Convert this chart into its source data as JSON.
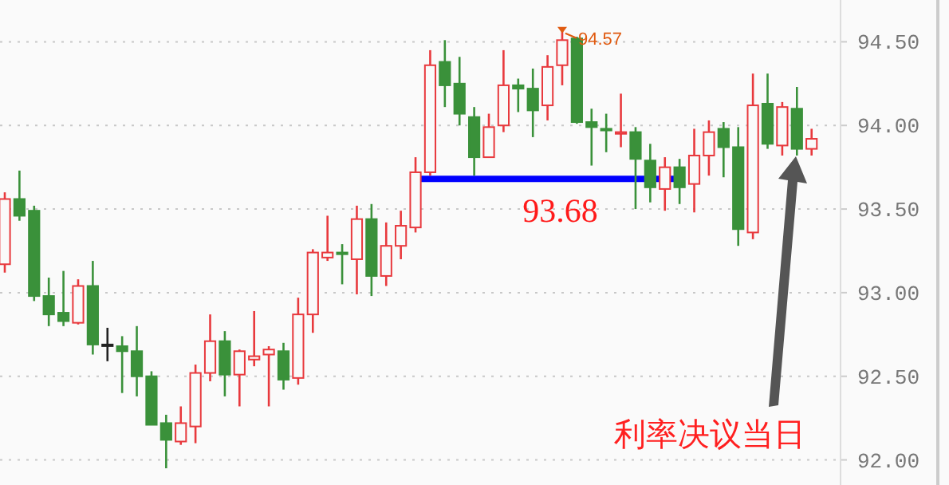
{
  "chart_data": {
    "type": "candlestick",
    "categories": [
      null,
      null,
      null,
      null,
      null,
      null,
      null,
      null,
      null,
      null,
      null,
      null,
      null,
      null,
      null,
      null,
      null,
      null,
      null,
      null,
      null,
      null,
      null,
      null,
      null,
      null,
      null,
      null,
      null,
      null,
      null,
      null,
      null,
      null,
      null,
      null,
      null,
      null,
      null,
      null,
      null,
      null,
      null,
      null,
      null,
      null,
      null,
      null,
      null,
      null,
      null,
      null,
      null,
      null,
      null,
      null
    ],
    "ohlc": [
      [
        93.17,
        93.6,
        93.12,
        93.56
      ],
      [
        93.56,
        93.73,
        93.43,
        93.46
      ],
      [
        93.49,
        93.52,
        92.95,
        92.98
      ],
      [
        92.98,
        93.09,
        92.8,
        92.87
      ],
      [
        92.88,
        93.13,
        92.8,
        92.83
      ],
      [
        92.82,
        93.08,
        92.81,
        93.04
      ],
      [
        93.04,
        93.19,
        92.63,
        92.69
      ],
      [
        92.69,
        92.79,
        92.59,
        92.69
      ],
      [
        92.68,
        92.74,
        92.4,
        92.65
      ],
      [
        92.65,
        92.8,
        92.38,
        92.5
      ],
      [
        92.5,
        92.53,
        92.21,
        92.21
      ],
      [
        92.22,
        92.27,
        91.95,
        92.12
      ],
      [
        92.11,
        92.32,
        92.09,
        92.22
      ],
      [
        92.2,
        92.57,
        92.1,
        92.52
      ],
      [
        92.52,
        92.87,
        92.47,
        92.71
      ],
      [
        92.71,
        92.77,
        92.38,
        92.51
      ],
      [
        92.51,
        92.66,
        92.32,
        92.65
      ],
      [
        92.6,
        92.89,
        92.56,
        92.62
      ],
      [
        92.63,
        92.68,
        92.32,
        92.66
      ],
      [
        92.65,
        92.7,
        92.42,
        92.48
      ],
      [
        92.49,
        92.97,
        92.45,
        92.87
      ],
      [
        92.87,
        93.26,
        92.76,
        93.24
      ],
      [
        93.21,
        93.46,
        93.19,
        93.24
      ],
      [
        93.24,
        93.29,
        93.05,
        93.23
      ],
      [
        93.2,
        93.52,
        92.99,
        93.44
      ],
      [
        93.44,
        93.53,
        92.98,
        93.1
      ],
      [
        93.1,
        93.42,
        93.04,
        93.28
      ],
      [
        93.28,
        93.49,
        93.2,
        93.4
      ],
      [
        93.39,
        93.81,
        93.36,
        93.72
      ],
      [
        93.72,
        94.45,
        93.7,
        94.36
      ],
      [
        94.38,
        94.51,
        94.11,
        94.24
      ],
      [
        94.25,
        94.41,
        94.0,
        94.07
      ],
      [
        94.05,
        94.11,
        93.7,
        93.81
      ],
      [
        93.81,
        94.07,
        93.81,
        93.99
      ],
      [
        94.0,
        94.45,
        93.96,
        94.24
      ],
      [
        94.24,
        94.28,
        94.08,
        94.22
      ],
      [
        94.22,
        94.34,
        93.93,
        94.09
      ],
      [
        94.12,
        94.42,
        94.03,
        94.35
      ],
      [
        94.36,
        94.57,
        94.24,
        94.51
      ],
      [
        94.52,
        94.53,
        94.01,
        94.02
      ],
      [
        94.02,
        94.1,
        93.76,
        93.99
      ],
      [
        93.98,
        94.07,
        93.84,
        93.97
      ],
      [
        93.95,
        94.19,
        93.87,
        93.96
      ],
      [
        93.96,
        93.99,
        93.5,
        93.8
      ],
      [
        93.79,
        93.89,
        93.54,
        93.63
      ],
      [
        93.62,
        93.81,
        93.49,
        93.75
      ],
      [
        93.75,
        93.8,
        93.53,
        93.63
      ],
      [
        93.65,
        93.98,
        93.48,
        93.82
      ],
      [
        93.82,
        94.03,
        93.7,
        93.96
      ],
      [
        93.98,
        94.02,
        93.69,
        93.87
      ],
      [
        93.87,
        93.99,
        93.28,
        93.38
      ],
      [
        93.36,
        94.31,
        93.32,
        94.12
      ],
      [
        94.13,
        94.31,
        93.86,
        93.89
      ],
      [
        93.88,
        94.14,
        93.82,
        94.11
      ],
      [
        94.1,
        94.23,
        93.82,
        93.86
      ],
      [
        93.86,
        93.98,
        93.82,
        93.92
      ]
    ],
    "colors": [
      "#e8393d",
      "#3a913a",
      "#3a913a",
      "#3a913a",
      "#3a913a",
      "#e8393d",
      "#3a913a",
      "#222222",
      "#3a913a",
      "#3a913a",
      "#3a913a",
      "#3a913a",
      "#e8393d",
      "#e8393d",
      "#e8393d",
      "#3a913a",
      "#e8393d",
      "#e8393d",
      "#e8393d",
      "#3a913a",
      "#e8393d",
      "#e8393d",
      "#e8393d",
      "#3a913a",
      "#e8393d",
      "#3a913a",
      "#e8393d",
      "#e8393d",
      "#e8393d",
      "#e8393d",
      "#3a913a",
      "#3a913a",
      "#3a913a",
      "#e8393d",
      "#e8393d",
      "#3a913a",
      "#3a913a",
      "#e8393d",
      "#e8393d",
      "#3a913a",
      "#3a913a",
      "#3a913a",
      "#e8393d",
      "#3a913a",
      "#3a913a",
      "#e8393d",
      "#3a913a",
      "#e8393d",
      "#e8393d",
      "#3a913a",
      "#3a913a",
      "#e8393d",
      "#3a913a",
      "#e8393d",
      "#3a913a",
      "#e8393d"
    ],
    "series": [
      {
        "type": "line",
        "color": "#0000ff",
        "values": [
          null,
          null,
          null,
          null,
          null,
          null,
          null,
          null,
          null,
          null,
          null,
          null,
          null,
          null,
          null,
          null,
          null,
          null,
          null,
          null,
          null,
          null,
          null,
          null,
          null,
          null,
          null,
          null,
          93.68,
          93.68,
          93.68,
          93.68,
          93.68,
          93.68,
          93.68,
          93.68,
          93.68,
          93.68,
          93.68,
          93.68,
          93.68,
          93.68,
          93.68,
          93.68,
          93.68,
          93.68,
          93.68,
          null,
          null,
          null,
          null,
          null,
          null,
          null,
          null,
          null
        ]
      }
    ],
    "ylim": [
      91.85,
      94.75
    ],
    "yticks": [
      {
        "value": 92,
        "label": "92.00"
      },
      {
        "value": 92.5,
        "label": "92.50"
      },
      {
        "value": 93,
        "label": "93.00"
      },
      {
        "value": 93.5,
        "label": "93.50"
      },
      {
        "value": 94,
        "label": "94.00"
      },
      {
        "value": 94.5,
        "label": "94.50"
      }
    ],
    "grid": "y",
    "annotations": [
      "94.57",
      {
        "text": "93.68",
        "y": 93.68
      },
      "利率决议当日"
    ]
  }
}
